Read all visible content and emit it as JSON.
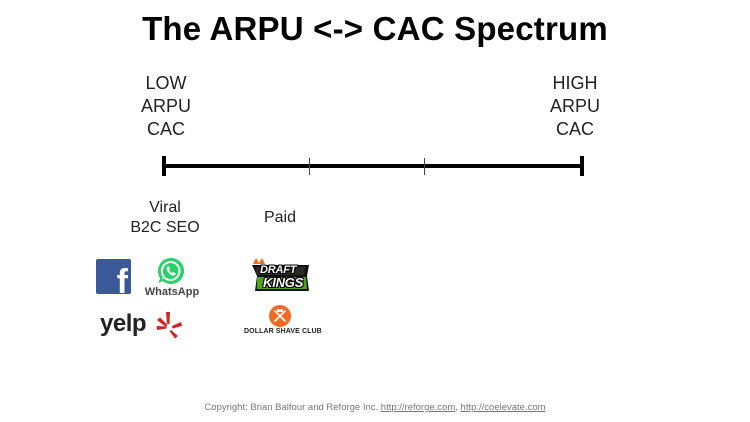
{
  "title": "The ARPU <-> CAC Spectrum",
  "low_end": {
    "line1": "LOW",
    "line2": "ARPU",
    "line3": "CAC"
  },
  "high_end": {
    "line1": "HIGH",
    "line2": "ARPU",
    "line3": "CAC"
  },
  "categories": {
    "viral": {
      "line1": "Viral",
      "line2": "B2C SEO"
    },
    "paid": {
      "label": "Paid"
    }
  },
  "logos": {
    "facebook": {
      "glyph": "f",
      "color": "#3b5998"
    },
    "whatsapp": {
      "text": "WhatsApp",
      "color": "#25d366"
    },
    "yelp": {
      "text": "yelp",
      "color": "#d32323"
    },
    "draftkings": {
      "line1": "DRAFT",
      "line2": "KINGS",
      "color": "#53a318"
    },
    "dollar_shave_club": {
      "text": "DOLLAR SHAVE CLUB",
      "color": "#f26b21"
    }
  },
  "footer": {
    "prefix": "Copyright:  Brian Balfour and Reforge Inc. ",
    "link1": "http://reforge.com",
    "separator": ", ",
    "link2": "http://coelevate.com"
  }
}
